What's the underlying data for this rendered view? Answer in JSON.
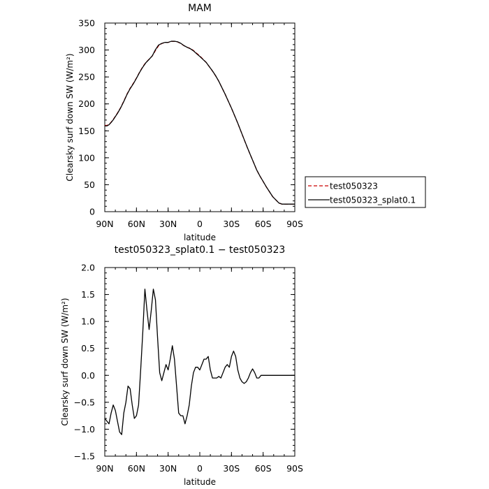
{
  "chart_data": [
    {
      "type": "line",
      "title": "MAM",
      "xlabel": "latitude",
      "ylabel": "Clearsky surf down SW (W/m²)",
      "xlim": [
        90,
        -90
      ],
      "ylim": [
        0,
        350
      ],
      "xtick_values": [
        90,
        60,
        30,
        0,
        -30,
        -60,
        -90
      ],
      "xtick_labels": [
        "90N",
        "60N",
        "30N",
        "0",
        "30S",
        "60S",
        "90S"
      ],
      "ytick_values": [
        0,
        50,
        100,
        150,
        200,
        250,
        300,
        350
      ],
      "ytick_labels": [
        "0",
        "50",
        "100",
        "150",
        "200",
        "250",
        "300",
        "350"
      ],
      "grid": false,
      "legend_position": "right",
      "series": [
        {
          "name": "test050323",
          "color": "#cc0000",
          "dash": "dashed",
          "x": [
            90,
            88,
            86,
            84,
            82,
            80,
            78,
            75,
            72,
            69,
            66,
            63,
            60,
            57,
            54,
            51,
            48,
            45,
            42,
            39,
            36,
            33,
            30,
            27,
            24,
            21,
            18,
            15,
            12,
            9,
            6,
            3,
            0,
            -3,
            -6,
            -9,
            -12,
            -15,
            -18,
            -21,
            -24,
            -27,
            -30,
            -33,
            -36,
            -39,
            -42,
            -45,
            -48,
            -51,
            -54,
            -57,
            -60,
            -63,
            -66,
            -69,
            -72,
            -75,
            -78,
            -81,
            -84,
            -87,
            -90
          ],
          "values": [
            160,
            160,
            162,
            166,
            171,
            177,
            183,
            193,
            205,
            218,
            229,
            238,
            248,
            259,
            269,
            277,
            283,
            289,
            299,
            308,
            312,
            314,
            314,
            316,
            316,
            315,
            312,
            308,
            305,
            303,
            299,
            294,
            289,
            283,
            277,
            269,
            261,
            252,
            242,
            230,
            218,
            205,
            192,
            178,
            164,
            149,
            134,
            119,
            105,
            91,
            77,
            66,
            56,
            46,
            37,
            28,
            22,
            16,
            14,
            14,
            14,
            14,
            14
          ]
        },
        {
          "name": "test050323_splat0.1",
          "color": "#000000",
          "dash": "solid",
          "x": [
            90,
            88,
            86,
            84,
            82,
            80,
            78,
            75,
            72,
            69,
            66,
            63,
            60,
            57,
            54,
            51,
            48,
            45,
            42,
            39,
            36,
            33,
            30,
            27,
            24,
            21,
            18,
            15,
            12,
            9,
            6,
            3,
            0,
            -3,
            -6,
            -9,
            -12,
            -15,
            -18,
            -21,
            -24,
            -27,
            -30,
            -33,
            -36,
            -39,
            -42,
            -45,
            -48,
            -51,
            -54,
            -57,
            -60,
            -63,
            -66,
            -69,
            -72,
            -75,
            -78,
            -81,
            -84,
            -87,
            -90
          ],
          "values": [
            159.2,
            159.1,
            161.3,
            165.5,
            170.5,
            176.5,
            182.3,
            192.5,
            204.4,
            217.3,
            228.2,
            237.2,
            247.5,
            258.5,
            268.2,
            276.6,
            282.6,
            289.2,
            300.6,
            309.3,
            312.3,
            314.1,
            314.1,
            316.2,
            316.3,
            315.2,
            312.4,
            308.2,
            305.0,
            302.4,
            298.4,
            293.1,
            288.1,
            282.5,
            277.1,
            269.2,
            261.2,
            252.3,
            242.0,
            230.0,
            218.0,
            205.0,
            192.2,
            178.2,
            164.1,
            149.1,
            134.1,
            119.3,
            105.0,
            91.0,
            77.0,
            66.0,
            56.1,
            46.1,
            37.1,
            28.0,
            22.0,
            16.0,
            14.0,
            14.0,
            14.0,
            14.0,
            14.0
          ]
        }
      ]
    },
    {
      "type": "line",
      "title": "test050323_splat0.1 − test050323",
      "xlabel": "latitude",
      "ylabel": "Clearsky surf down SW (W/m²)",
      "xlim": [
        90,
        -90
      ],
      "ylim": [
        -1.5,
        2.0
      ],
      "xtick_values": [
        90,
        60,
        30,
        0,
        -30,
        -60,
        -90
      ],
      "xtick_labels": [
        "90N",
        "60N",
        "30N",
        "0",
        "30S",
        "60S",
        "90S"
      ],
      "ytick_values": [
        -1.5,
        -1.0,
        -0.5,
        0.0,
        0.5,
        1.0,
        1.5,
        2.0
      ],
      "ytick_labels": [
        "−1.5",
        "−1.0",
        "−0.5",
        "0.0",
        "0.5",
        "1.0",
        "1.5",
        "2.0"
      ],
      "grid": false,
      "series": [
        {
          "color": "#000000",
          "dash": "solid",
          "x": [
            90,
            88,
            86,
            84,
            82,
            80,
            78,
            76,
            74,
            72,
            70,
            68,
            66,
            64,
            62,
            60,
            58,
            56,
            54,
            52,
            50,
            48,
            46,
            44,
            42,
            40,
            38,
            36,
            34,
            32,
            30,
            28,
            26,
            24,
            22,
            20,
            18,
            16,
            14,
            12,
            10,
            8,
            6,
            4,
            2,
            0,
            -2,
            -4,
            -6,
            -8,
            -10,
            -12,
            -14,
            -16,
            -18,
            -20,
            -22,
            -24,
            -26,
            -28,
            -30,
            -32,
            -34,
            -36,
            -38,
            -40,
            -42,
            -44,
            -46,
            -48,
            -50,
            -52,
            -54,
            -56,
            -58,
            -60,
            -62,
            -64,
            -66,
            -68,
            -70,
            -72,
            -74,
            -76,
            -78,
            -80,
            -82,
            -84,
            -86,
            -88,
            -90
          ],
          "values": [
            -0.8,
            -0.85,
            -0.9,
            -0.7,
            -0.55,
            -0.65,
            -0.85,
            -1.05,
            -1.1,
            -0.7,
            -0.5,
            -0.2,
            -0.25,
            -0.55,
            -0.8,
            -0.75,
            -0.55,
            0.1,
            0.8,
            1.6,
            1.2,
            0.85,
            1.2,
            1.6,
            1.4,
            0.7,
            0.05,
            -0.1,
            0.05,
            0.2,
            0.1,
            0.3,
            0.55,
            0.3,
            -0.2,
            -0.7,
            -0.75,
            -0.75,
            -0.9,
            -0.75,
            -0.55,
            -0.2,
            0.05,
            0.15,
            0.15,
            0.1,
            0.2,
            0.3,
            0.3,
            0.35,
            0.1,
            -0.05,
            -0.05,
            -0.05,
            -0.02,
            -0.05,
            0.05,
            0.15,
            0.2,
            0.15,
            0.35,
            0.45,
            0.35,
            0.1,
            -0.05,
            -0.12,
            -0.15,
            -0.12,
            -0.05,
            0.05,
            0.12,
            0.05,
            -0.05,
            -0.05,
            0.0,
            0.0,
            0.0,
            0.0,
            0.0,
            0.0,
            0.0,
            0.0,
            0.0,
            0.0,
            0.0,
            0.0,
            0.0,
            0.0,
            0.0,
            0.0,
            0.0
          ]
        }
      ]
    }
  ]
}
